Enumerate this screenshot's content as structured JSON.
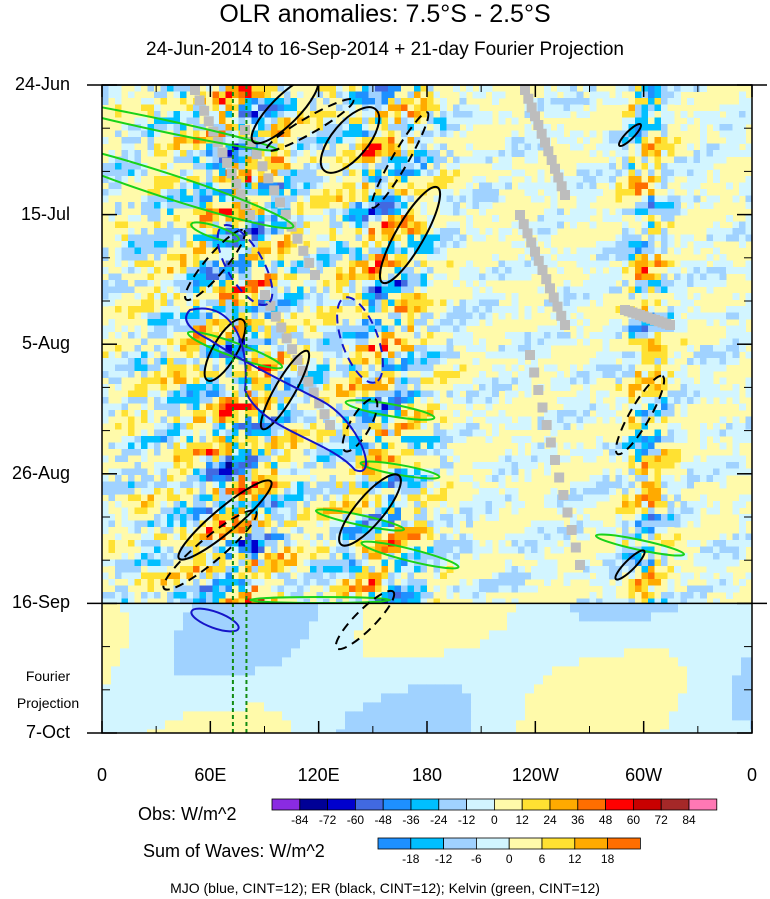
{
  "chart_data": {
    "type": "heatmap",
    "title": "OLR anomalies: 7.5°S - 2.5°S",
    "subtitle": "24-Jun-2014 to 16-Sep-2014 + 21-day Fourier Projection",
    "x_ticks": [
      "0",
      "60E",
      "120E",
      "180",
      "120W",
      "60W",
      "0"
    ],
    "x_tick_values": [
      0,
      60,
      120,
      180,
      240,
      300,
      360
    ],
    "y_ticks": [
      "24-Jun",
      "15-Jul",
      "5-Aug",
      "26-Aug",
      "16-Sep",
      "7-Oct"
    ],
    "y_tick_days": [
      0,
      21,
      42,
      63,
      84,
      105
    ],
    "projection_label_line1": "Fourier",
    "projection_label_line2": "Projection",
    "observation_end_day": 84,
    "reference_lines_longitude": [
      72.5,
      80
    ],
    "obs_colorbar": {
      "label": "Obs: W/m^2",
      "levels": [
        "-84",
        "-72",
        "-60",
        "-48",
        "-36",
        "-24",
        "-12",
        "0",
        "12",
        "24",
        "36",
        "48",
        "60",
        "72",
        "84"
      ],
      "colors": [
        "#8a2be2",
        "#000096",
        "#0000cd",
        "#4169e1",
        "#1e90ff",
        "#00bfff",
        "#a0d2ff",
        "#d2f5ff",
        "#fffaaa",
        "#ffe132",
        "#ffaa00",
        "#ff6e00",
        "#ff0000",
        "#c80000",
        "#a52828",
        "#ff78b4"
      ]
    },
    "waves_colorbar": {
      "label": "Sum of Waves: W/m^2",
      "levels": [
        "-18",
        "-12",
        "-6",
        "0",
        "6",
        "12",
        "18"
      ],
      "colors": [
        "#1e90ff",
        "#00bfff",
        "#a0d2ff",
        "#d2f5ff",
        "#fffaaa",
        "#ffe132",
        "#ffaa00",
        "#ff6e00"
      ]
    },
    "contour_colors": {
      "mjo": "#1515c8",
      "er": "#000000",
      "kelvin": "#19d219"
    },
    "legend_text": "MJO (blue, CINT=12); ER (black, CINT=12); Kelvin (green, CINT=12)"
  }
}
